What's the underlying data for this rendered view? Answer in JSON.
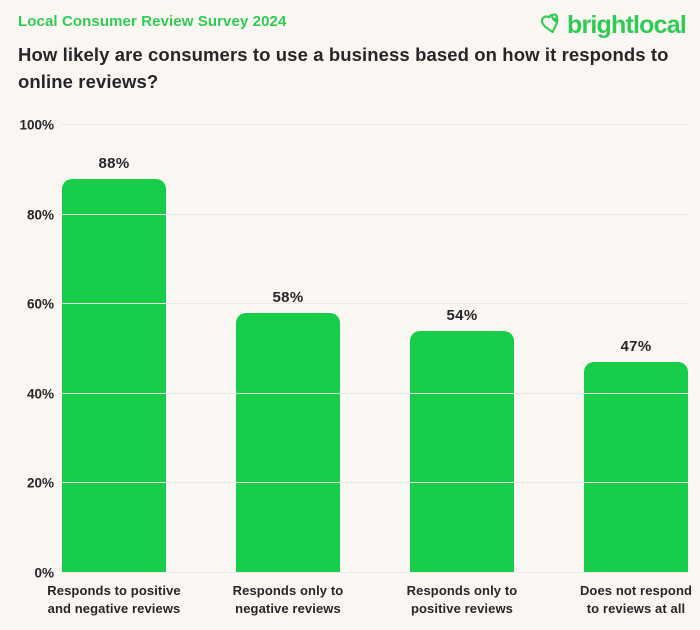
{
  "header": {
    "survey_label": "Local Consumer Review Survey 2024",
    "logo_text": "brightlocal"
  },
  "title": "How likely are consumers to use a business based on how it responds to online reviews?",
  "colors": {
    "background": "#faf7f2",
    "bar_green": "#16cc48",
    "brand_green": "#2fcb55",
    "text_dark": "#26262a",
    "gridline": "#eae6e0"
  },
  "chart_data": {
    "type": "bar",
    "title": "How likely are consumers to use a business based on how it responds to online reviews?",
    "categories": [
      "Responds to positive\nand negative reviews",
      "Responds only to\nnegative reviews",
      "Responds only to\npositive reviews",
      "Does not respond\nto reviews at all"
    ],
    "values": [
      88,
      58,
      54,
      47
    ],
    "value_labels": [
      "88%",
      "58%",
      "54%",
      "47%"
    ],
    "xlabel": "",
    "ylabel": "",
    "ylim": [
      0,
      100
    ],
    "yticks": [
      0,
      20,
      40,
      60,
      80,
      100
    ],
    "ytick_labels": [
      "0%",
      "20%",
      "40%",
      "60%",
      "80%",
      "100%"
    ],
    "grid": true,
    "legend_position": "none",
    "bar_color": "#16cc48"
  }
}
